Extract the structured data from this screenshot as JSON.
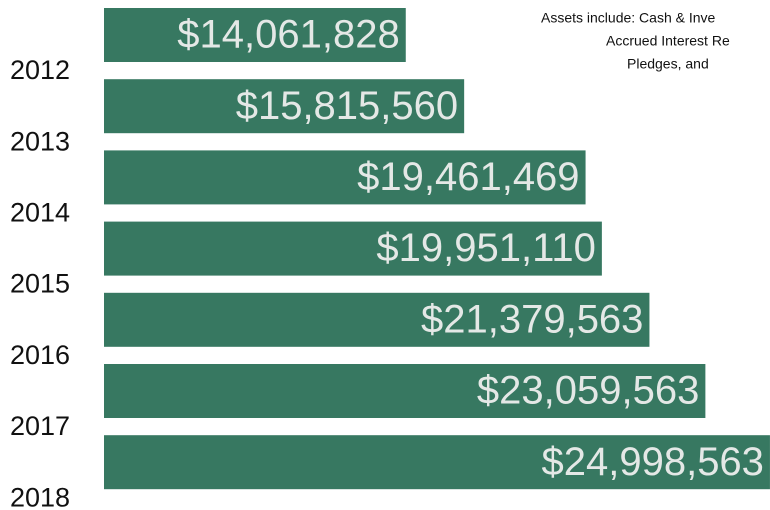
{
  "chart_data": {
    "type": "bar",
    "orientation": "horizontal",
    "categories": [
      "2012",
      "2013",
      "2014",
      "2015",
      "2016",
      "2017",
      "2018"
    ],
    "values": [
      14061828,
      15815560,
      19461469,
      19951110,
      21379563,
      23059563,
      24998563
    ],
    "value_labels": [
      "$14,061,828",
      "$15,815,560",
      "$19,461,469",
      "$19,951,110",
      "$21,379,563",
      "$23,059,563",
      "$24,998,563"
    ],
    "color": "#377861",
    "xlim": [
      5000000,
      25000000
    ],
    "annotation": [
      "Assets include: Cash & Inve",
      "Accrued Interest Re",
      "Pledges, and"
    ]
  }
}
